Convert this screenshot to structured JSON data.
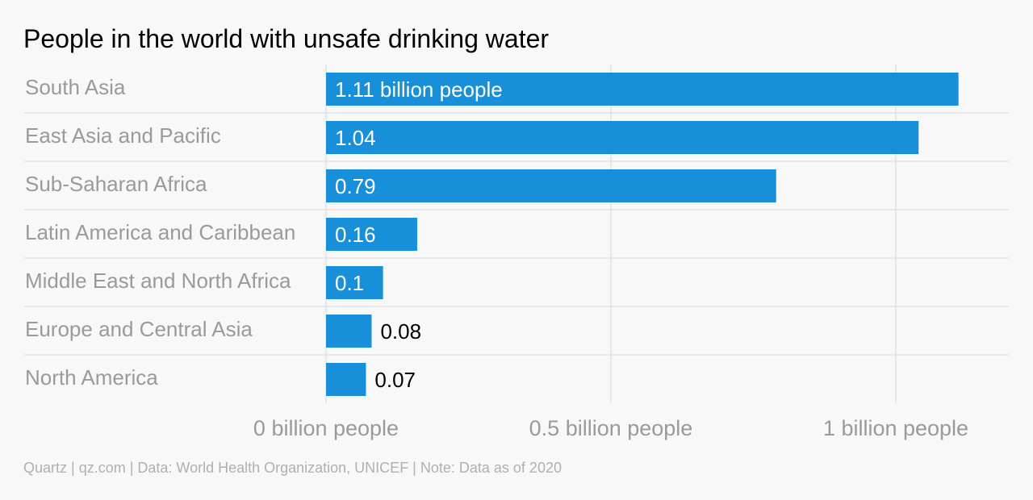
{
  "chart_data": {
    "type": "bar",
    "orientation": "horizontal",
    "title": "People in the world with unsafe drinking water",
    "categories": [
      "South Asia",
      "East Asia and Pacific",
      "Sub-Saharan Africa",
      "Latin America and Caribbean",
      "Middle East and North Africa",
      "Europe and Central Asia",
      "North America"
    ],
    "values": [
      1.11,
      1.04,
      0.79,
      0.16,
      0.1,
      0.08,
      0.07
    ],
    "value_labels": [
      "1.11 billion people",
      "1.04",
      "0.79",
      "0.16",
      "0.1",
      "0.08",
      "0.07"
    ],
    "xticks": [
      0,
      0.5,
      1
    ],
    "xtick_labels": [
      "0 billion people",
      "0.5 billion people",
      "1 billion people"
    ],
    "xlim": [
      0,
      1.2
    ],
    "grid": true,
    "bar_color": "#178fd9",
    "source": "Quartz | qz.com | Data: World Health Organization, UNICEF | Note: Data as of 2020"
  }
}
